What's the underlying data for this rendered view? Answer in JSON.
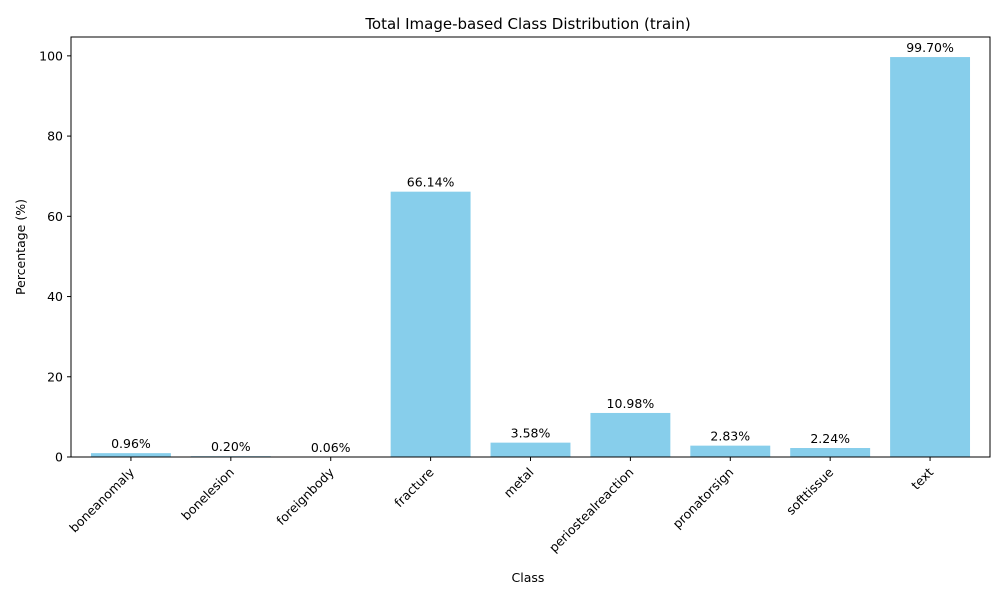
{
  "chart_data": {
    "type": "bar",
    "title": "Total Image-based Class Distribution (train)",
    "xlabel": "Class",
    "ylabel": "Percentage (%)",
    "categories": [
      "boneanomaly",
      "bonelesion",
      "foreignbody",
      "fracture",
      "metal",
      "periostealreaction",
      "pronatorsign",
      "softtissue",
      "text"
    ],
    "values": [
      0.96,
      0.2,
      0.06,
      66.14,
      3.58,
      10.98,
      2.83,
      2.24,
      99.7
    ],
    "data_labels": [
      "0.96%",
      "0.20%",
      "0.06%",
      "66.14%",
      "3.58%",
      "10.98%",
      "2.83%",
      "2.24%",
      "99.70%"
    ],
    "yticks": [
      0,
      20,
      40,
      60,
      80,
      100
    ],
    "ylim": [
      0,
      104.7
    ],
    "grid": false,
    "bar_color": "#87ceeb",
    "x_tick_rotation_deg": 45
  }
}
